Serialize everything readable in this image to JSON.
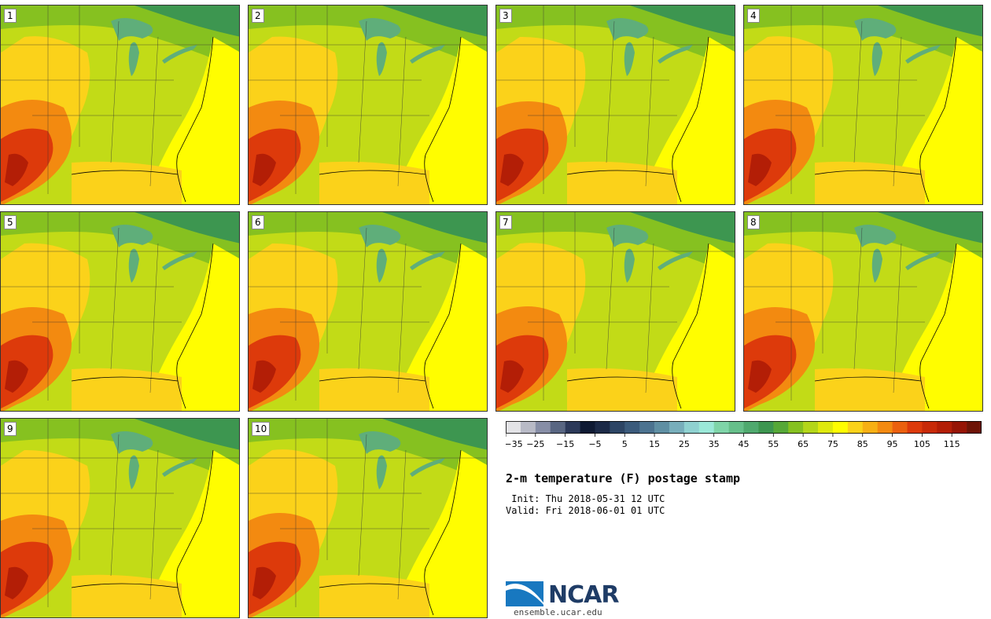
{
  "panels": [
    {
      "label": "1"
    },
    {
      "label": "2"
    },
    {
      "label": "3"
    },
    {
      "label": "4"
    },
    {
      "label": "5"
    },
    {
      "label": "6"
    },
    {
      "label": "7"
    },
    {
      "label": "8"
    },
    {
      "label": "9"
    },
    {
      "label": "10"
    }
  ],
  "colorbar": {
    "colors": [
      "#e3e3e6",
      "#b8bac6",
      "#878ea6",
      "#596682",
      "#2c3959",
      "#0f1a33",
      "#1c2a47",
      "#2d4565",
      "#3b5b7c",
      "#4c7390",
      "#5f8fa3",
      "#78aebb",
      "#8fd1d0",
      "#9be8d8",
      "#7fd4a8",
      "#66bf8a",
      "#4fa96e",
      "#3d9650",
      "#56a838",
      "#86c120",
      "#b4d619",
      "#dfe90d",
      "#fffd00",
      "#fbd21a",
      "#f7b014",
      "#f38a10",
      "#eb600e",
      "#dd3a0b",
      "#c82a08",
      "#b31e06",
      "#961505",
      "#6e1406"
    ],
    "ticks": [
      "−35",
      "−25",
      "−15",
      "−5",
      "5",
      "15",
      "25",
      "35",
      "45",
      "55",
      "65",
      "75",
      "85",
      "95",
      "105",
      "115"
    ]
  },
  "map_colors": {
    "cold_green": "#3d9650",
    "green": "#86c120",
    "yellow_green": "#c2db17",
    "yellow": "#fffd00",
    "orange_light": "#fbd21a",
    "orange": "#f38a10",
    "red": "#dd3a0b",
    "dark_red": "#b31e06",
    "lake": "#5fae7a"
  },
  "title": "2-m temperature (F) postage stamp",
  "init_text": " Init: Thu 2018-05-31 12 UTC",
  "valid_text": "Valid: Fri 2018-06-01 01 UTC",
  "logo": {
    "name": "NCAR",
    "url": "ensemble.ucar.edu"
  }
}
